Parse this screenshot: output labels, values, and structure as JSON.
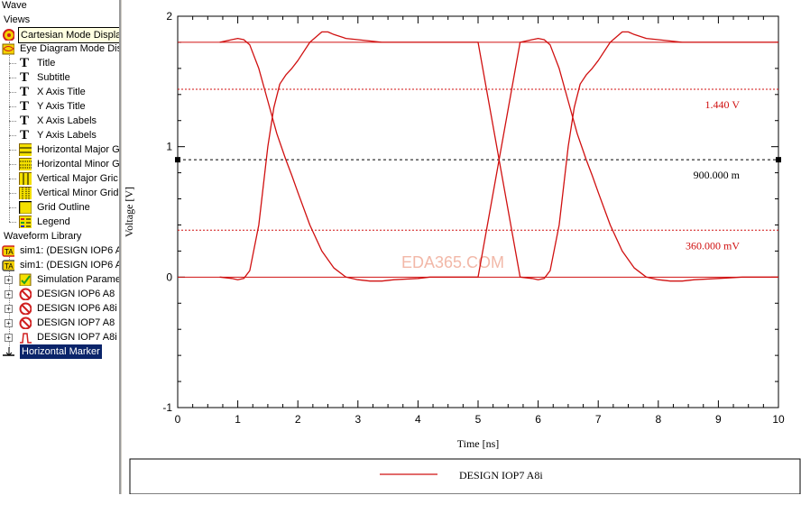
{
  "tree": {
    "wave_label": "Wave",
    "views_label": "Views",
    "items": [
      {
        "label": "Cartesian Mode Display",
        "icon": "cartesian-icon"
      },
      {
        "label": "Eye Diagram Mode Dis",
        "icon": "eye-diagram-icon"
      },
      {
        "label": "Title",
        "icon": "text-icon"
      },
      {
        "label": "Subtitle",
        "icon": "text-icon"
      },
      {
        "label": "X Axis Title",
        "icon": "text-icon"
      },
      {
        "label": "Y Axis Title",
        "icon": "text-icon"
      },
      {
        "label": "X Axis Labels",
        "icon": "text-icon"
      },
      {
        "label": "Y Axis Labels",
        "icon": "text-icon"
      },
      {
        "label": "Horizontal Major G",
        "icon": "grid-icon"
      },
      {
        "label": "Horizontal Minor G",
        "icon": "grid-icon"
      },
      {
        "label": "Vertical Major Gric",
        "icon": "grid-icon"
      },
      {
        "label": "Vertical Minor Grid",
        "icon": "grid-icon"
      },
      {
        "label": "Grid Outline",
        "icon": "grid-outline-icon"
      },
      {
        "label": "Legend",
        "icon": "legend-icon"
      }
    ],
    "library_label": "Waveform Library",
    "library_items": [
      {
        "label": "sim1: (DESIGN IOP6 A",
        "icon": "simulation-icon"
      },
      {
        "label": "sim1: (DESIGN IOP6 A",
        "icon": "simulation-icon"
      },
      {
        "label": "Simulation Parame",
        "icon": "parameters-icon"
      },
      {
        "label": "DESIGN IOP6 A8",
        "icon": "hidden-waveform-icon"
      },
      {
        "label": "DESIGN IOP6 A8i",
        "icon": "hidden-waveform-icon"
      },
      {
        "label": "DESIGN IOP7 A8",
        "icon": "hidden-waveform-icon"
      },
      {
        "label": "DESIGN IOP7 A8i",
        "icon": "waveform-icon"
      }
    ],
    "marker_label": "Horizontal Marker"
  },
  "colors": {
    "trace": "#d01010",
    "marker_red": "#d01010",
    "marker_black": "#000000",
    "selection": "#0a246a",
    "watermark": "#f2b8a8"
  },
  "watermark": "EDA365.COM",
  "markers": [
    {
      "value": 1.44,
      "label": "1.440 V",
      "color": "red"
    },
    {
      "value": 0.9,
      "label": "900.000 m",
      "color": "black"
    },
    {
      "value": 0.36,
      "label": "360.000 mV",
      "color": "red"
    }
  ],
  "legend": {
    "series_name": "DESIGN IOP7 A8i"
  },
  "chart_data": {
    "type": "line",
    "xlabel": "Time [ns]",
    "ylabel": "Voltage [V]",
    "xlim": [
      0,
      10
    ],
    "ylim": [
      -1,
      2
    ],
    "x_ticks": [
      "0",
      "1",
      "2",
      "3",
      "4",
      "5",
      "6",
      "7",
      "8",
      "9",
      "10"
    ],
    "y_ticks": [
      "2",
      "1",
      "0",
      "-1"
    ],
    "grid": false,
    "series": [
      {
        "name": "DESIGN IOP7 A8i",
        "x": [
          0.7,
          0.9,
          1.0,
          1.1,
          1.2,
          1.35,
          1.5,
          1.65,
          1.8,
          1.9,
          2.0,
          2.2,
          2.4,
          2.6,
          2.8,
          3.0,
          3.2,
          3.4,
          3.6,
          4.0,
          4.2,
          4.4,
          4.8,
          5.0,
          5.7,
          5.9,
          6.0,
          6.1,
          6.2,
          6.35,
          6.5,
          6.65,
          6.8,
          6.9,
          7.0,
          7.2,
          7.4,
          7.6,
          7.8,
          8.0,
          8.2,
          8.4,
          8.6,
          9.0,
          9.4,
          10.0
        ],
        "y": [
          1.8,
          1.82,
          1.83,
          1.82,
          1.78,
          1.6,
          1.35,
          1.1,
          0.9,
          0.78,
          0.65,
          0.4,
          0.2,
          0.07,
          0.0,
          -0.02,
          -0.03,
          -0.03,
          -0.02,
          -0.01,
          0.0,
          0.0,
          0.0,
          0.0,
          1.8,
          1.82,
          1.83,
          1.82,
          1.78,
          1.6,
          1.35,
          1.1,
          0.9,
          0.78,
          0.65,
          0.4,
          0.2,
          0.07,
          0.0,
          -0.02,
          -0.03,
          -0.03,
          -0.02,
          -0.01,
          0.0,
          0.0
        ]
      },
      {
        "name": "DESIGN IOP7 A8i",
        "x": [
          0.7,
          0.9,
          1.0,
          1.1,
          1.2,
          1.35,
          1.5,
          1.6,
          1.7,
          1.8,
          1.9,
          2.0,
          2.2,
          2.4,
          2.5,
          2.6,
          2.8,
          3.0,
          3.4,
          4.0,
          4.4,
          5.0,
          5.7,
          5.9,
          6.0,
          6.1,
          6.2,
          6.35,
          6.5,
          6.6,
          6.7,
          6.8,
          6.9,
          7.0,
          7.2,
          7.4,
          7.5,
          7.6,
          7.8,
          8.0,
          8.4,
          9.0,
          9.4,
          10.0
        ],
        "y": [
          0.0,
          -0.01,
          -0.02,
          -0.01,
          0.05,
          0.4,
          1.0,
          1.3,
          1.48,
          1.55,
          1.6,
          1.66,
          1.8,
          1.88,
          1.88,
          1.86,
          1.83,
          1.82,
          1.8,
          1.8,
          1.8,
          1.8,
          0.0,
          -0.01,
          -0.02,
          -0.01,
          0.05,
          0.4,
          1.0,
          1.3,
          1.48,
          1.55,
          1.6,
          1.66,
          1.8,
          1.88,
          1.88,
          1.86,
          1.83,
          1.82,
          1.8,
          1.8,
          1.8,
          1.8
        ]
      }
    ]
  }
}
